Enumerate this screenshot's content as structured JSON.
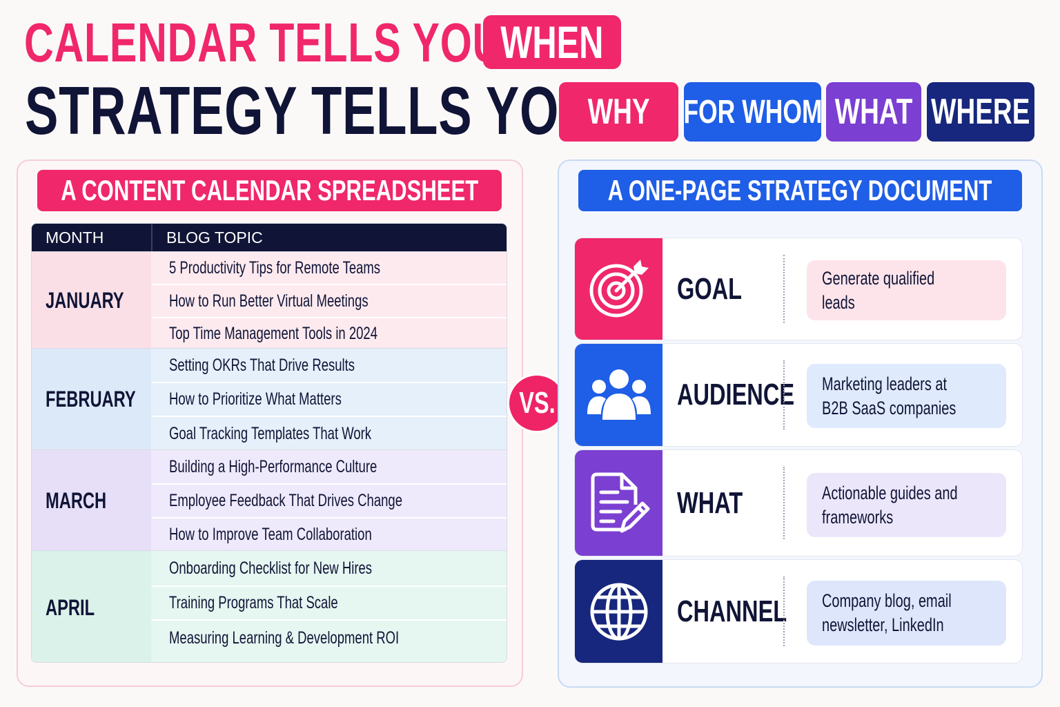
{
  "headline": {
    "line1": "CALENDAR TELLS YOU",
    "line1_highlight": "WHEN",
    "line2": "STRATEGY TELLS YOU",
    "line2_pills": [
      "WHY",
      "FOR WHOM",
      "WHAT",
      "WHERE"
    ]
  },
  "left_panel": {
    "title": "A CONTENT CALENDAR SPREADSHEET",
    "columns": [
      "MONTH",
      "BLOG TOPIC"
    ],
    "rows": [
      {
        "month": "JANUARY",
        "topics": [
          "5 Productivity Tips for Remote Teams",
          "How to Run Better Virtual Meetings",
          "Top Time Management Tools in 2024"
        ]
      },
      {
        "month": "FEBRUARY",
        "topics": [
          "Setting OKRs That Drive Results",
          "How to Prioritize What Matters",
          "Goal Tracking Templates That Work"
        ]
      },
      {
        "month": "MARCH",
        "topics": [
          "Building a High-Performance Culture",
          "Employee Feedback That Drives Change",
          "How to Improve Team Collaboration"
        ]
      },
      {
        "month": "APRIL",
        "topics": [
          "Onboarding Checklist for New Hires",
          "Training Programs That Scale",
          "Measuring Learning & Development ROI"
        ]
      }
    ]
  },
  "vs_label": "VS.",
  "right_panel": {
    "title": "A ONE-PAGE STRATEGY DOCUMENT",
    "items": [
      {
        "label": "GOAL",
        "value": "Generate qualified leads",
        "icon": "target-icon"
      },
      {
        "label": "AUDIENCE",
        "value": "Marketing leaders at B2B SaaS companies",
        "icon": "people-icon"
      },
      {
        "label": "WHAT",
        "value": "Actionable guides and frameworks",
        "icon": "document-pencil-icon"
      },
      {
        "label": "CHANNEL",
        "value": "Company blog, email newsletter, LinkedIn",
        "icon": "globe-icon"
      }
    ]
  },
  "colors": {
    "pink": "#f0276b",
    "blue": "#1f5ee6",
    "purple": "#7b3fd2",
    "navy": "#17277d",
    "dark_text": "#101436"
  }
}
